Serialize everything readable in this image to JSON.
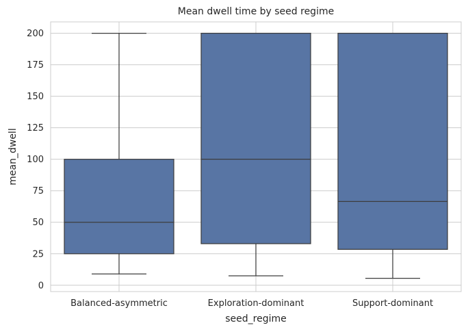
{
  "chart_data": {
    "type": "box",
    "title": "Mean dwell time by seed regime",
    "xlabel": "seed_regime",
    "ylabel": "mean_dwell",
    "ylim": [
      -5,
      209
    ],
    "yticks": [
      0,
      25,
      50,
      75,
      100,
      125,
      150,
      175,
      200
    ],
    "grid": true,
    "categories": [
      "Balanced-asymmetric",
      "Exploration-dominant",
      "Support-dominant"
    ],
    "boxes": [
      {
        "category": "Balanced-asymmetric",
        "whisker_low": 9,
        "q1": 25,
        "median": 50,
        "q3": 100,
        "whisker_high": 200
      },
      {
        "category": "Exploration-dominant",
        "whisker_low": 7.5,
        "q1": 33,
        "median": 100,
        "q3": 200,
        "whisker_high": 200
      },
      {
        "category": "Support-dominant",
        "whisker_low": 5.5,
        "q1": 28.5,
        "median": 66.5,
        "q3": 200,
        "whisker_high": 200
      }
    ],
    "colors": {
      "box_fill": "#5875a4",
      "line": "#3d3d3d",
      "grid": "#cccccc",
      "spine": "#cccccc"
    }
  }
}
